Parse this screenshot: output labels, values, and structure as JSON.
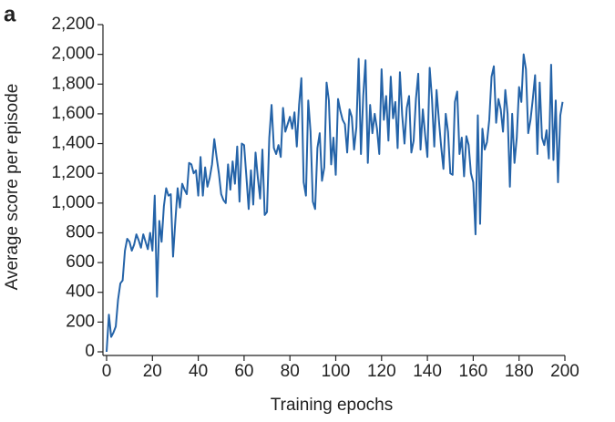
{
  "chart_data": {
    "type": "line",
    "panel_label": "a",
    "x_label": "Training epochs",
    "y_label": "Average score per episode",
    "x": [
      0,
      1,
      2,
      3,
      4,
      5,
      6,
      7,
      8,
      9,
      10,
      11,
      12,
      13,
      14,
      15,
      16,
      17,
      18,
      19,
      20,
      21,
      22,
      23,
      24,
      25,
      26,
      27,
      28,
      29,
      30,
      31,
      32,
      33,
      34,
      35,
      36,
      37,
      38,
      39,
      40,
      41,
      42,
      43,
      44,
      45,
      46,
      47,
      48,
      49,
      50,
      51,
      52,
      53,
      54,
      55,
      56,
      57,
      58,
      59,
      60,
      61,
      62,
      63,
      64,
      65,
      66,
      67,
      68,
      69,
      70,
      71,
      72,
      73,
      74,
      75,
      76,
      77,
      78,
      79,
      80,
      81,
      82,
      83,
      84,
      85,
      86,
      87,
      88,
      89,
      90,
      91,
      92,
      93,
      94,
      95,
      96,
      97,
      98,
      99,
      100,
      101,
      102,
      103,
      104,
      105,
      106,
      107,
      108,
      109,
      110,
      111,
      112,
      113,
      114,
      115,
      116,
      117,
      118,
      119,
      120,
      121,
      122,
      123,
      124,
      125,
      126,
      127,
      128,
      129,
      130,
      131,
      132,
      133,
      134,
      135,
      136,
      137,
      138,
      139,
      140,
      141,
      142,
      143,
      144,
      145,
      146,
      147,
      148,
      149,
      150,
      151,
      152,
      153,
      154,
      155,
      156,
      157,
      158,
      159,
      160,
      161,
      162,
      163,
      164,
      165,
      166,
      167,
      168,
      169,
      170,
      171,
      172,
      173,
      174,
      175,
      176,
      177,
      178,
      179,
      180,
      181,
      182,
      183,
      184,
      185,
      186,
      187,
      188,
      189,
      190,
      191,
      192,
      193,
      194,
      195,
      196,
      197,
      198,
      199
    ],
    "series": [
      {
        "name": "Average score",
        "color": "#2463a8",
        "values": [
          0,
          250,
          100,
          130,
          170,
          350,
          460,
          480,
          680,
          760,
          740,
          680,
          720,
          790,
          750,
          700,
          790,
          740,
          690,
          800,
          680,
          1050,
          370,
          880,
          740,
          980,
          1100,
          1050,
          1060,
          640,
          880,
          1100,
          970,
          1130,
          1090,
          1060,
          1270,
          1260,
          1200,
          1220,
          1050,
          1310,
          1050,
          1240,
          1110,
          1170,
          1260,
          1430,
          1310,
          1200,
          1060,
          1020,
          1000,
          1260,
          1090,
          1280,
          1130,
          1380,
          1010,
          1400,
          1390,
          1180,
          960,
          1220,
          990,
          1340,
          1170,
          1030,
          1360,
          920,
          940,
          1440,
          1660,
          1370,
          1330,
          1390,
          1310,
          1640,
          1480,
          1530,
          1580,
          1500,
          1610,
          1380,
          1660,
          1840,
          1140,
          1050,
          1690,
          1480,
          1010,
          960,
          1370,
          1470,
          1150,
          1240,
          1810,
          1690,
          1260,
          1440,
          1190,
          1700,
          1620,
          1560,
          1530,
          1340,
          1630,
          1580,
          1360,
          1510,
          1970,
          1330,
          1720,
          1960,
          1270,
          1660,
          1470,
          1600,
          1500,
          1330,
          1900,
          1560,
          1720,
          1420,
          1850,
          1570,
          1680,
          1370,
          1880,
          1590,
          1400,
          1640,
          1720,
          1340,
          1420,
          1700,
          1870,
          1360,
          1630,
          1460,
          1310,
          1910,
          1700,
          1380,
          1760,
          1560,
          1380,
          1230,
          1600,
          1480,
          1200,
          1190,
          1680,
          1750,
          1330,
          1440,
          1180,
          1450,
          1390,
          1200,
          1140,
          790,
          1590,
          860,
          1500,
          1360,
          1410,
          1560,
          1850,
          1920,
          1540,
          1700,
          1630,
          1480,
          1760,
          1600,
          1110,
          1600,
          1270,
          1440,
          1780,
          1680,
          2000,
          1900,
          1470,
          1560,
          1700,
          1860,
          1330,
          1810,
          1440,
          1390,
          1490,
          1300,
          1930,
          1290,
          1690,
          1140,
          1590,
          1680
        ]
      }
    ],
    "xlim": [
      0,
      200
    ],
    "xticks": [
      0,
      20,
      40,
      60,
      80,
      100,
      120,
      140,
      160,
      180,
      200
    ],
    "ylim": [
      0,
      2200
    ],
    "yticks": [
      0,
      200,
      400,
      600,
      800,
      {
        "value": 1000,
        "label": "1,000"
      },
      {
        "value": 1200,
        "label": "1,200"
      },
      {
        "value": 1400,
        "label": "1,400"
      },
      {
        "value": 1600,
        "label": "1,600"
      },
      {
        "value": 1800,
        "label": "1,800"
      },
      {
        "value": 2000,
        "label": "2,000"
      },
      {
        "value": 2200,
        "label": "2,200"
      }
    ],
    "grid": false
  }
}
